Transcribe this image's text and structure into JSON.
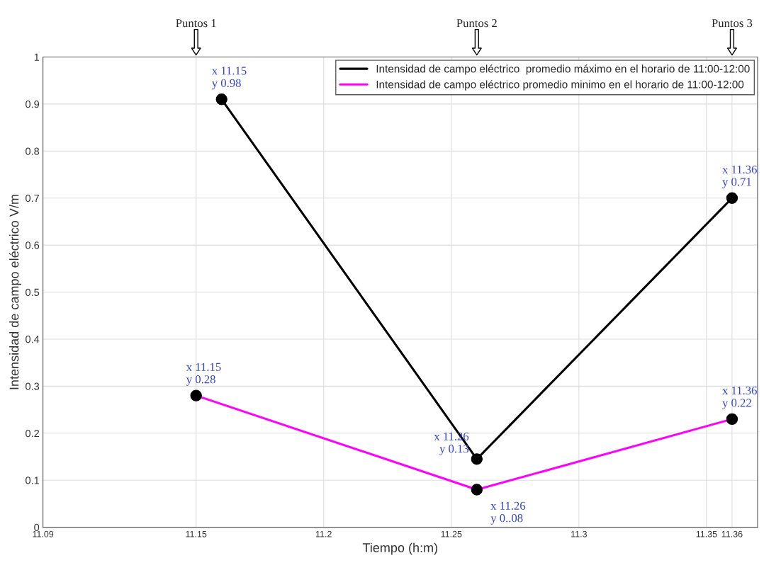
{
  "chart_data": {
    "type": "line",
    "xlabel": "Tiempo (h:m)",
    "ylabel": "Intensidad de campo eléctrico V/m",
    "series": [
      {
        "name": "Intensidad de campo eléctrico  promedio máximo en el horario de 11:00-12:00",
        "color": "#000000",
        "x": [
          11.16,
          11.26,
          11.36
        ],
        "values": [
          0.91,
          0.145,
          0.7
        ]
      },
      {
        "name": "Intensidad de campo eléctrico promedio minimo en el horario de 11:00-12:00",
        "color": "#ff00ff",
        "x": [
          11.15,
          11.26,
          11.36
        ],
        "values": [
          0.28,
          0.08,
          0.23
        ]
      }
    ],
    "xlim": [
      11.09,
      11.37
    ],
    "xticks": [
      11.09,
      11.15,
      11.2,
      11.25,
      11.3,
      11.35,
      11.36
    ],
    "ylim": [
      0,
      1
    ],
    "yticks": [
      0,
      0.1,
      0.2,
      0.3,
      0.4,
      0.5,
      0.6,
      0.7,
      0.8,
      0.9,
      1
    ],
    "grid": true,
    "legend": "top right",
    "marker": "circle",
    "line_style": "solid",
    "annotations": [
      {
        "text": "x 11.15\ny 0.98",
        "x": 11.16,
        "y": 0.91
      },
      {
        "text": "x 11.26\ny 0.13",
        "x": 11.26,
        "y": 0.145
      },
      {
        "text": "x 11.36\ny 0.71",
        "x": 11.36,
        "y": 0.7
      },
      {
        "text": "x 11.15\ny 0.28",
        "x": 11.15,
        "y": 0.28
      },
      {
        "text": "x 11.26\ny 0..08",
        "x": 11.26,
        "y": 0.08
      },
      {
        "text": "x 11.36\ny 0.22",
        "x": 11.36,
        "y": 0.23
      },
      "Puntos 1",
      "Puntos 2",
      "Puntos 3"
    ]
  }
}
